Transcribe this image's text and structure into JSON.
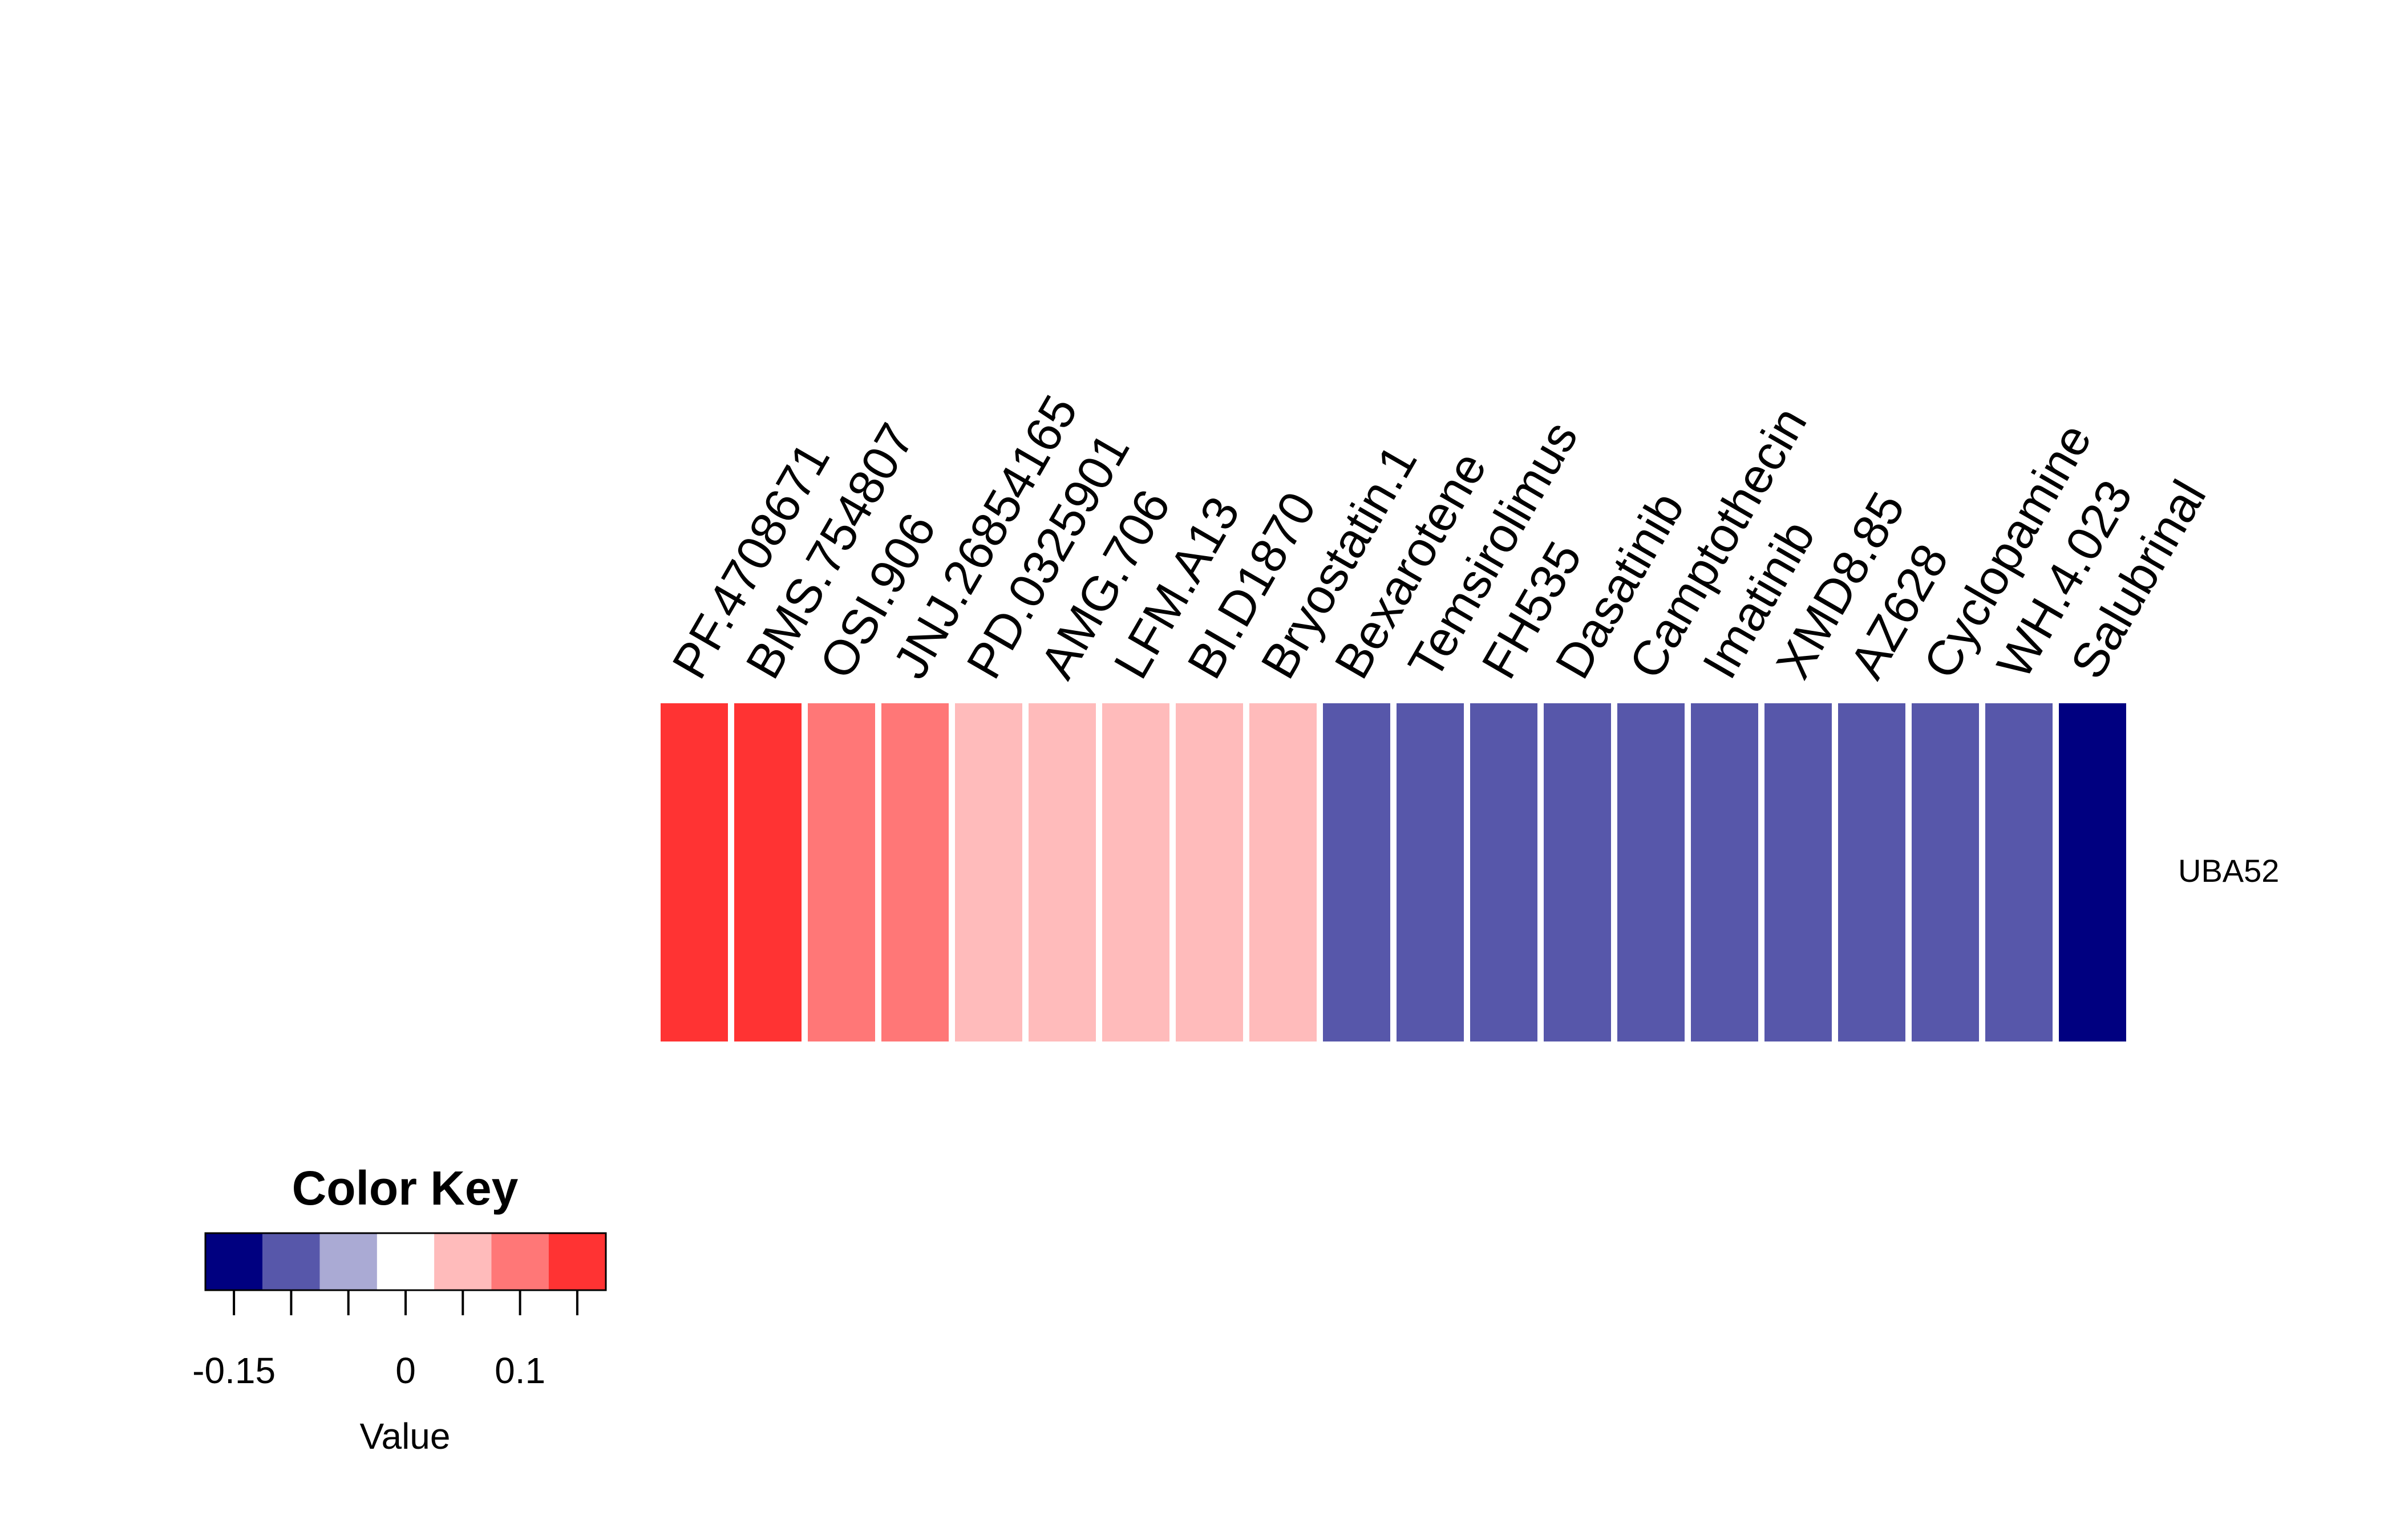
{
  "chart_data": [
    {
      "type": "heatmap",
      "rows": [
        "UBA52"
      ],
      "columns": [
        "PF.4708671",
        "BMS.754807",
        "OSI.906",
        "JNJ.26854165",
        "PD.0325901",
        "AMG.706",
        "LFM.A13",
        "BI.D1870",
        "Bryostatin.1",
        "Bexarotene",
        "Temsirolimus",
        "FH535",
        "Dasatinib",
        "Camptothecin",
        "Imatinib",
        "XMD8.85",
        "AZ628",
        "Cyclopamine",
        "WH.4.023",
        "Salubrinal"
      ],
      "values": [
        [
          0.13,
          0.13,
          0.08,
          0.08,
          0.03,
          0.03,
          0.03,
          0.03,
          0.03,
          -0.12,
          -0.12,
          -0.12,
          -0.12,
          -0.12,
          -0.12,
          -0.12,
          -0.12,
          -0.12,
          -0.12,
          -0.17
        ]
      ],
      "color_bins": {
        "breaks": [
          -0.175,
          -0.125,
          -0.075,
          -0.025,
          0.025,
          0.075,
          0.125,
          0.175
        ],
        "colors": [
          "#000080",
          "#5757AA",
          "#AAAAD4",
          "#FFFFFF",
          "#FFBBBB",
          "#FF7777",
          "#FF3333"
        ]
      }
    },
    {
      "type": "color_key",
      "title": "Color Key",
      "xlabel": "Value",
      "tick_labels": [
        "-0.15",
        "0",
        "0.1"
      ],
      "tick_values": [
        -0.15,
        0,
        0.1
      ],
      "minor_ticks": [
        -0.15,
        -0.1,
        -0.05,
        0,
        0.05,
        0.1,
        0.15
      ]
    }
  ]
}
